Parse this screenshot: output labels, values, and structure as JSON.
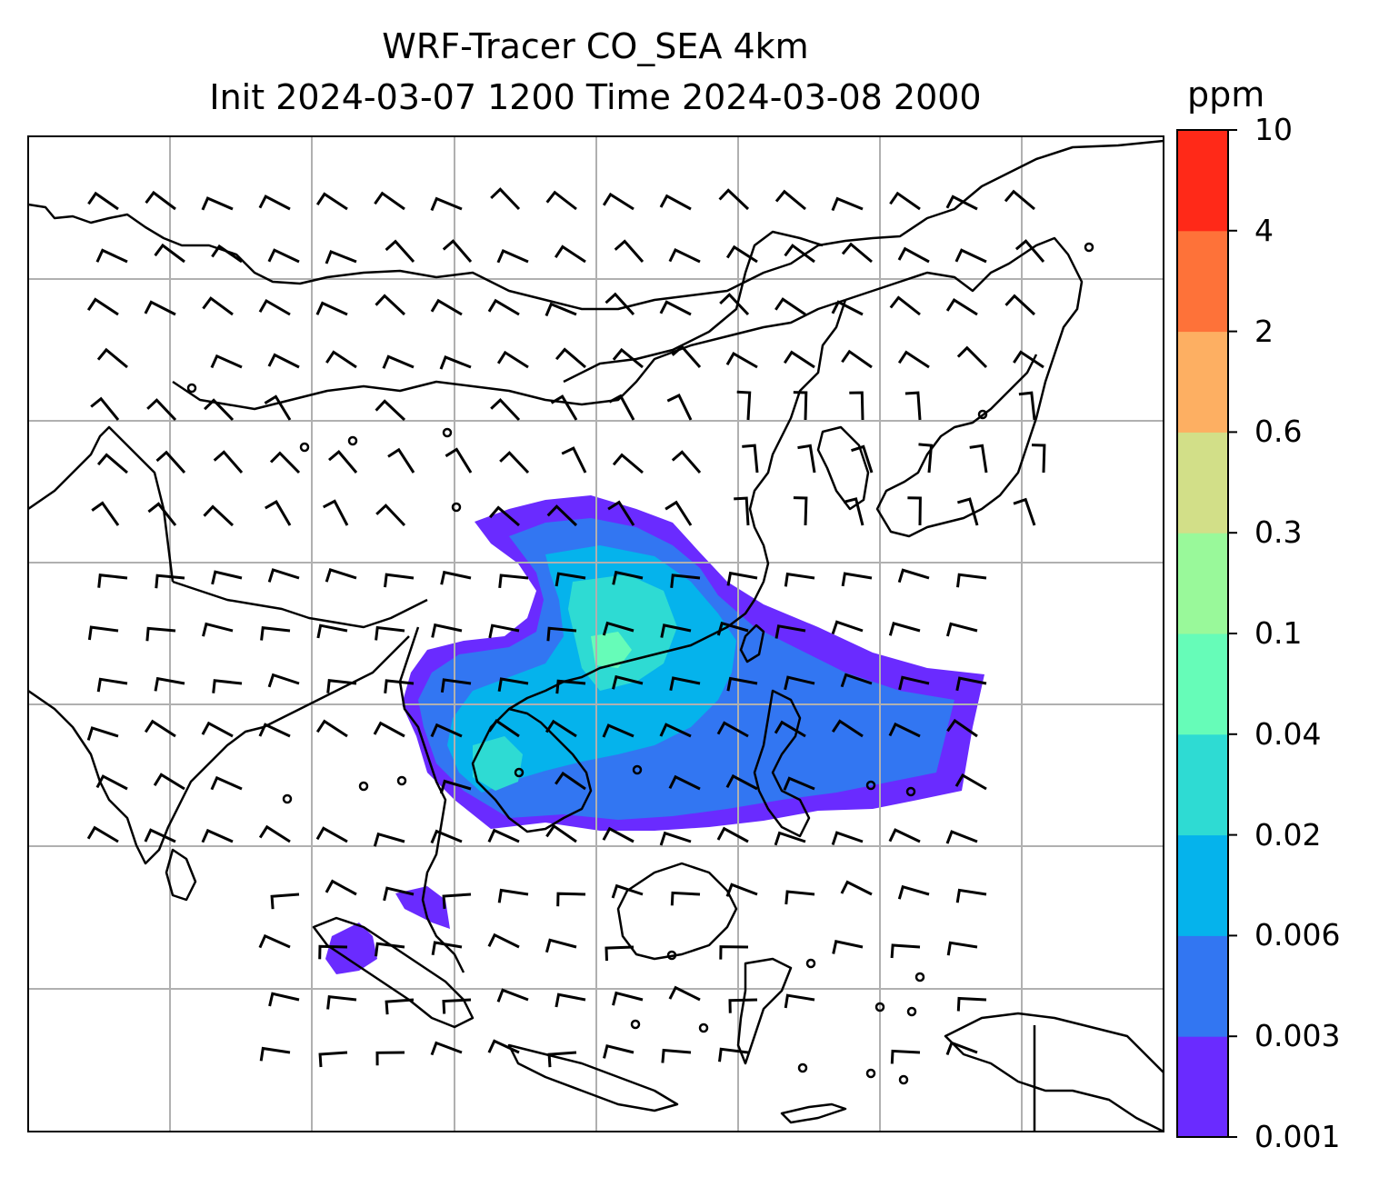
{
  "title": {
    "line1": "WRF-Tracer CO_SEA 4km",
    "line2": "Init 2024-03-07 1200 Time 2024-03-08 2000"
  },
  "colorbar": {
    "unit": "ppm",
    "tick_labels": [
      "0.001",
      "0.003",
      "0.006",
      "0.02",
      "0.04",
      "0.1",
      "0.3",
      "0.6",
      "2",
      "4",
      "10"
    ],
    "colors": [
      "#6a2bff",
      "#3276f2",
      "#05b3ec",
      "#2edbd3",
      "#66fcb8",
      "#99f99a",
      "#d2df88",
      "#fdaf62",
      "#fe7239",
      "#ff2918"
    ]
  },
  "map": {
    "projection": "regional lat-lon",
    "gridlines": true,
    "features": [
      "coastlines",
      "country borders",
      "wind barbs",
      "CO tracer concentration contours"
    ],
    "plume_levels": {
      "outer": "0.001-0.003",
      "middle": "0.003-0.006",
      "inner": "0.006-0.02",
      "core": "0.02-0.04",
      "peak": "0.04-0.1"
    }
  }
}
